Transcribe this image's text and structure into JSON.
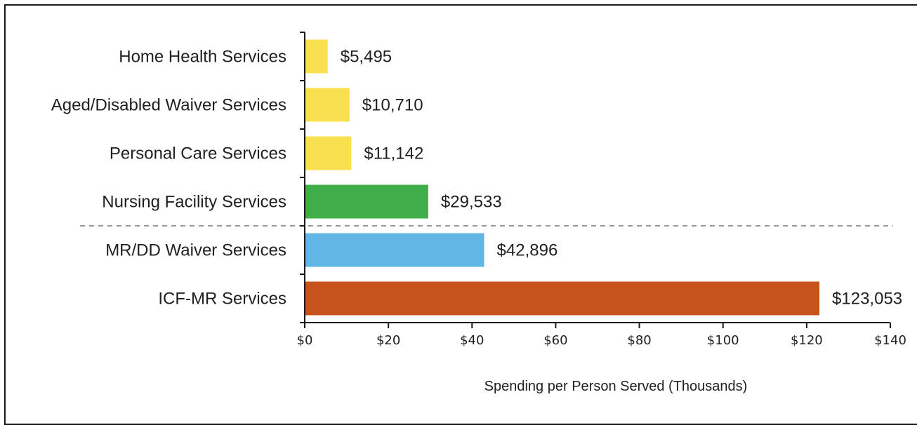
{
  "chart_data": {
    "type": "bar",
    "orientation": "horizontal",
    "categories": [
      "Home Health Services",
      "Aged/Disabled Waiver Services",
      "Personal Care Services",
      "Nursing Facility Services",
      "MR/DD Waiver Services",
      "ICF-MR Services"
    ],
    "values": [
      5.495,
      10.71,
      11.142,
      29.533,
      42.896,
      123.053
    ],
    "value_labels": [
      "$5,495",
      "$10,710",
      "$11,142",
      "$29,533",
      "$42,896",
      "$123,053"
    ],
    "colors": [
      "#f8e04e",
      "#f8e04e",
      "#f8e04e",
      "#3fae49",
      "#62b6e6",
      "#c5531b"
    ],
    "xlim": [
      0,
      140
    ],
    "x_ticks": [
      0,
      20,
      40,
      60,
      80,
      100,
      120,
      140
    ],
    "x_tick_labels": [
      "$0",
      "$20",
      "$40",
      "$60",
      "$80",
      "$100",
      "$120",
      "$140"
    ],
    "xlabel": "Spending per Person Served (Thousands)",
    "ylabel": "",
    "title": "",
    "grid": false,
    "legend": "none",
    "divider": {
      "style": "dashed",
      "color": "#9a9a9a",
      "between_categories": [
        "Nursing Facility Services",
        "MR/DD Waiver Services"
      ]
    }
  }
}
